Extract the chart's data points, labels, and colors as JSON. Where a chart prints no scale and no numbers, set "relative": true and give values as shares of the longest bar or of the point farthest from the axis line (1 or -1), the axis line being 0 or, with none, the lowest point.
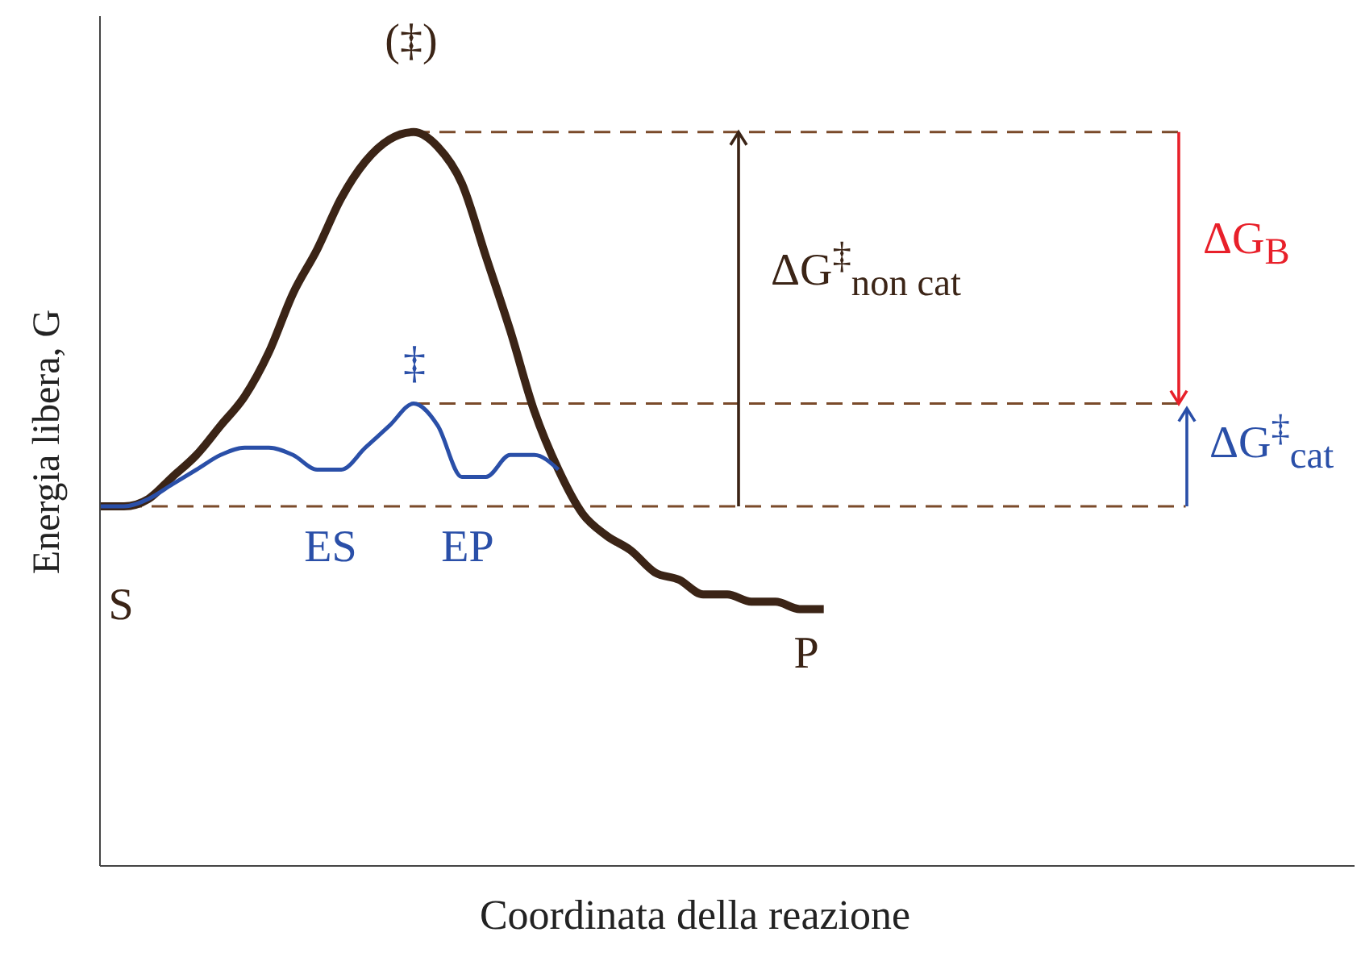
{
  "chart_data": {
    "type": "line",
    "relative": true,
    "xlabel": "Coordinata della reazione",
    "ylabel": "Energia libera, G",
    "categories": [
      null,
      null,
      null,
      null,
      null,
      null,
      null,
      null,
      null,
      null,
      null,
      null,
      null,
      null,
      null,
      null,
      null,
      null,
      null,
      null,
      null,
      null,
      null,
      null,
      null,
      null,
      null,
      null,
      null,
      null,
      null,
      null,
      null,
      null,
      null,
      null,
      null,
      null,
      null,
      null,
      null,
      null,
      null,
      null,
      null,
      null,
      null,
      null,
      null,
      null,
      null,
      null,
      null
    ],
    "series": [
      {
        "color": "#3b2416",
        "values": [
          0.49,
          0.49,
          0.5,
          0.53,
          0.56,
          0.6,
          0.64,
          0.7,
          0.78,
          0.84,
          0.91,
          0.96,
          0.99,
          1,
          0.98,
          0.93,
          0.83,
          0.73,
          0.62,
          0.54,
          0.48,
          0.45,
          0.43,
          0.4,
          0.39,
          0.37,
          0.37,
          0.36,
          0.36,
          0.35,
          0.35,
          null,
          null,
          null,
          null,
          null,
          null,
          null,
          null,
          null,
          null,
          null,
          null,
          null,
          null,
          null,
          null,
          null,
          null,
          null,
          null,
          null,
          null
        ]
      },
      {
        "color": "#2a4fa8",
        "values": [
          0.49,
          0.49,
          0.5,
          0.52,
          0.54,
          0.56,
          0.57,
          0.57,
          0.56,
          0.54,
          0.54,
          0.57,
          0.6,
          0.63,
          0.6,
          0.53,
          0.53,
          0.56,
          0.56,
          0.54,
          null,
          null,
          null,
          null,
          null,
          null,
          null,
          null,
          null,
          null,
          null,
          null,
          null,
          null,
          null,
          null,
          null,
          null,
          null,
          null,
          null,
          null,
          null,
          null,
          null,
          null,
          null,
          null,
          null,
          null,
          null,
          null,
          null
        ]
      }
    ],
    "ref_lines": [
      {
        "axis": "y",
        "value": 1,
        "color": "#7a4a2a",
        "line_style": "dashed"
      },
      {
        "axis": "y",
        "value": 0.63,
        "color": "#7a4a2a",
        "line_style": "dashed"
      },
      {
        "axis": "y",
        "value": 0.49,
        "color": "#7a4a2a",
        "line_style": "dashed"
      }
    ],
    "annotations": [
      "(‡)",
      "‡",
      "ES",
      "EP",
      "S",
      "P",
      "ΔG$^{‡}$$_{non cat}$",
      "ΔG$_{B}$",
      "ΔG$^{‡}$$_{cat}$"
    ],
    "line_style": "solid",
    "marker": "none"
  }
}
